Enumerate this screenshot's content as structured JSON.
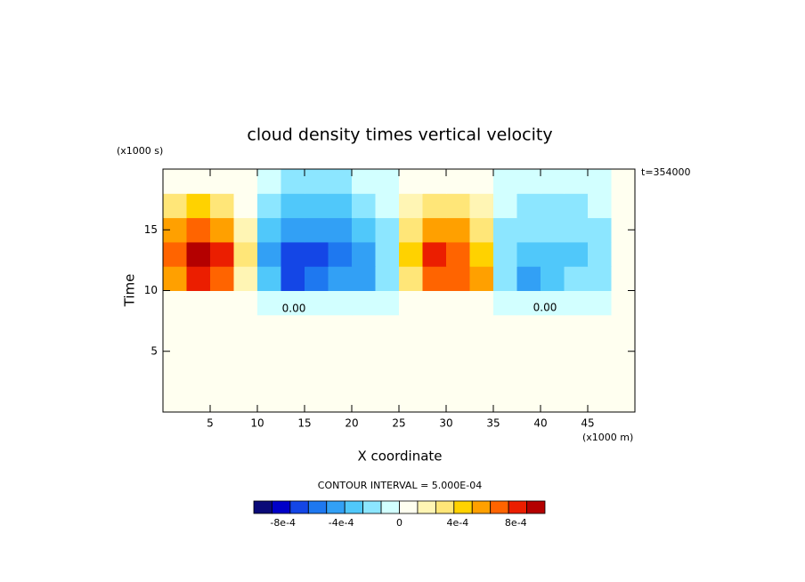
{
  "chart_data": {
    "type": "contour",
    "title": "cloud density times vertical velocity",
    "xlabel": "X coordinate",
    "ylabel": "Time",
    "xunit": "(x1000 m)",
    "yunit": "(x1000 s)",
    "time_label": "t=354000",
    "contour_interval": "CONTOUR INTERVAL = 5.000E-04",
    "annotations": [
      "0.00",
      "0.00"
    ],
    "xlim": [
      0,
      50
    ],
    "ylim": [
      0,
      20
    ],
    "xticks": [
      5,
      10,
      15,
      20,
      25,
      30,
      35,
      40,
      45
    ],
    "yticks": [
      5,
      10,
      15
    ],
    "xedges": [
      0,
      2.5,
      5,
      7.5,
      10,
      12.5,
      15,
      17.5,
      20,
      22.5,
      25,
      27.5,
      30,
      32.5,
      35,
      37.5,
      40,
      42.5,
      45,
      47.5,
      50
    ],
    "yedges": [
      0,
      2,
      4,
      6,
      8,
      10,
      12,
      14,
      16,
      18,
      20
    ],
    "z": [
      [
        5e-05,
        5e-05,
        5e-05,
        5e-05,
        5e-05,
        5e-05,
        5e-05,
        5e-05,
        5e-05,
        5e-05,
        5e-05,
        5e-05,
        5e-05,
        5e-05,
        5e-05,
        5e-05,
        5e-05,
        5e-05,
        5e-05,
        5e-05
      ],
      [
        5e-05,
        5e-05,
        5e-05,
        5e-05,
        5e-05,
        5e-05,
        5e-05,
        5e-05,
        5e-05,
        5e-05,
        5e-05,
        5e-05,
        5e-05,
        5e-05,
        5e-05,
        5e-05,
        5e-05,
        5e-05,
        5e-05,
        5e-05
      ],
      [
        5e-05,
        5e-05,
        5e-05,
        5e-05,
        5e-05,
        5e-05,
        5e-05,
        5e-05,
        5e-05,
        5e-05,
        5e-05,
        5e-05,
        5e-05,
        5e-05,
        5e-05,
        5e-05,
        5e-05,
        5e-05,
        5e-05,
        5e-05
      ],
      [
        5e-05,
        5e-05,
        5e-05,
        5e-05,
        5e-05,
        5e-05,
        5e-05,
        5e-05,
        5e-05,
        5e-05,
        5e-05,
        5e-05,
        5e-05,
        5e-05,
        5e-05,
        5e-05,
        5e-05,
        5e-05,
        5e-05,
        5e-05
      ],
      [
        5e-05,
        0.0001,
        0.0001,
        3e-05,
        -5e-05,
        -0.0001,
        -0.0001,
        -0.0001,
        -8e-05,
        -3e-05,
        5e-05,
        0.0001,
        0.0001,
        8e-05,
        -3e-05,
        -5e-05,
        -5e-05,
        -5e-05,
        -3e-05,
        3e-05
      ],
      [
        0.0005,
        0.0008,
        0.0007,
        0.0002,
        -0.0003,
        -0.00075,
        -0.0006,
        -0.0005,
        -0.0004,
        -0.00015,
        0.0003,
        0.00065,
        0.0007,
        0.0005,
        -0.00015,
        -0.0004,
        -0.0003,
        -0.00025,
        -0.00015,
        0.0001
      ],
      [
        0.0007,
        0.001,
        0.0008,
        0.0003,
        -0.0004,
        -0.0007,
        -0.00065,
        -0.00055,
        -0.00045,
        -0.0002,
        0.0004,
        0.00075,
        0.0007,
        0.0004,
        -0.0002,
        -0.00035,
        -0.0003,
        -0.0003,
        -0.0002,
        0.0001
      ],
      [
        0.0005,
        0.0007,
        0.0006,
        0.0002,
        -0.0003,
        -0.0005,
        -0.0005,
        -0.00045,
        -0.00035,
        -0.00015,
        0.0003,
        0.00055,
        0.0005,
        0.00025,
        -0.00015,
        -0.00025,
        -0.00025,
        -0.0002,
        -0.00015,
        5e-05
      ],
      [
        0.0003,
        0.0004,
        0.0003,
        0.0001,
        -0.0002,
        -0.0003,
        -0.0003,
        -0.0003,
        -0.00025,
        -0.0001,
        0.0002,
        0.0003,
        0.0003,
        0.00015,
        -0.0001,
        -0.00015,
        -0.00015,
        -0.00015,
        -0.0001,
        5e-05
      ],
      [
        0.0001,
        0.0001,
        0.0001,
        5e-05,
        -0.0001,
        -0.00015,
        -0.00015,
        -0.00015,
        -0.0001,
        -5e-05,
        0.0001,
        0.0001,
        0.0001,
        5e-05,
        -5e-05,
        -5e-05,
        -5e-05,
        -5e-05,
        -3e-05,
        2e-05
      ]
    ],
    "levels": [
      -0.001,
      -0.000875,
      -0.00075,
      -0.000625,
      -0.0005,
      -0.000375,
      -0.00025,
      -0.000125,
      0,
      0.000125,
      0.00025,
      0.000375,
      0.0005,
      0.000625,
      0.00075,
      0.000875,
      0.001
    ],
    "colors": [
      "#0a0a78",
      "#0000c8",
      "#1446e6",
      "#1e78f0",
      "#32a0f5",
      "#50c8fa",
      "#8ce6ff",
      "#d2ffff",
      "#fffff0",
      "#fff5b4",
      "#ffe678",
      "#ffd200",
      "#ffa000",
      "#ff6400",
      "#eb1e00",
      "#b40000"
    ],
    "colorbar_ticks": [
      {
        "value": -0.0008,
        "label": "-8e-4"
      },
      {
        "value": -0.0004,
        "label": "-4e-4"
      },
      0,
      {
        "value": 0.0004,
        "label": "4e-4"
      },
      {
        "value": 0.0008,
        "label": "8e-4"
      }
    ]
  }
}
